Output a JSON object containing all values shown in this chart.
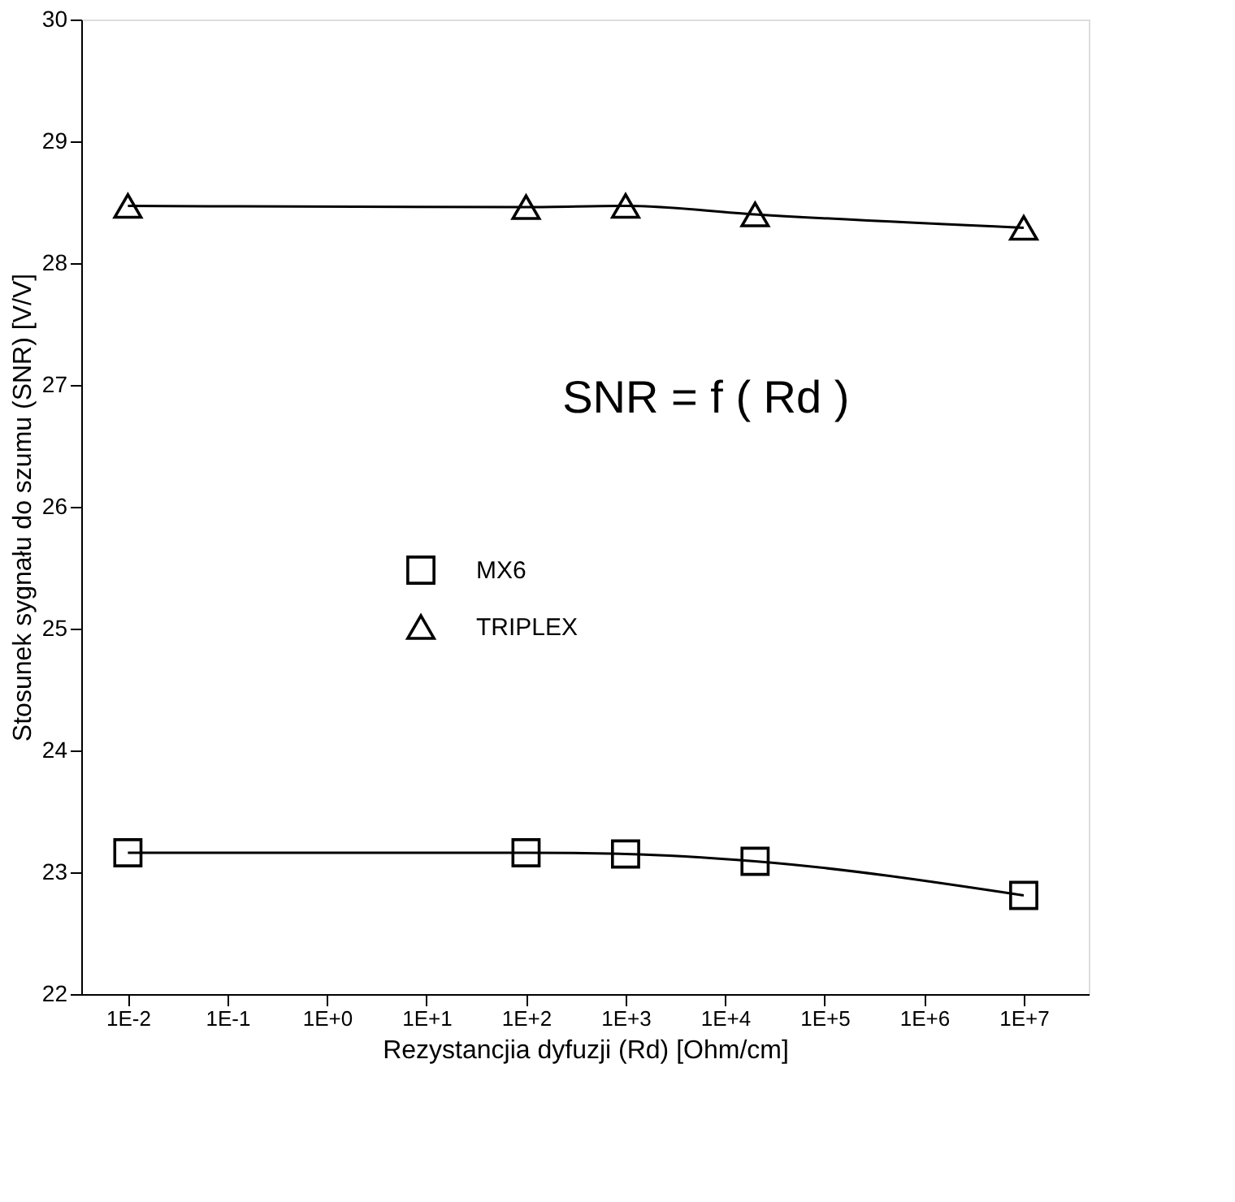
{
  "chart_data": {
    "type": "line",
    "xlabel": "Rezystancjia dyfuzji (Rd)   [Ohm/cm]",
    "ylabel": "Stosunek sygnału do szumu (SNR)   [V/V]",
    "annotations": [
      "SNR = f ( Rd )"
    ],
    "log": "x",
    "xlim": [
      0.0034,
      45000000
    ],
    "ylim": [
      22,
      30
    ],
    "xticks": [
      {
        "value": 0.01,
        "label": "1E-2"
      },
      {
        "value": 0.1,
        "label": "1E-1"
      },
      {
        "value": 1,
        "label": "1E+0"
      },
      {
        "value": 10,
        "label": "1E+1"
      },
      {
        "value": 100,
        "label": "1E+2"
      },
      {
        "value": 1000,
        "label": "1E+3"
      },
      {
        "value": 10000,
        "label": "1E+4"
      },
      {
        "value": 100000,
        "label": "1E+5"
      },
      {
        "value": 1000000,
        "label": "1E+6"
      },
      {
        "value": 10000000,
        "label": "1E+7"
      }
    ],
    "yticks": [
      22,
      23,
      24,
      25,
      26,
      27,
      28,
      29,
      30
    ],
    "grid": false,
    "legend": "center",
    "line_style": "solid",
    "series": [
      {
        "name": "MX6",
        "color": "#000000",
        "marker": "square",
        "x": [
          0.01,
          100,
          1000,
          20000,
          10000000
        ],
        "values": [
          23.16,
          23.16,
          23.15,
          23.09,
          22.81
        ]
      },
      {
        "name": "TRIPLEX",
        "color": "#000000",
        "marker": "triangle",
        "x": [
          0.01,
          100,
          1000,
          20000,
          10000000
        ],
        "values": [
          28.47,
          28.46,
          28.47,
          28.4,
          28.29
        ]
      }
    ]
  }
}
